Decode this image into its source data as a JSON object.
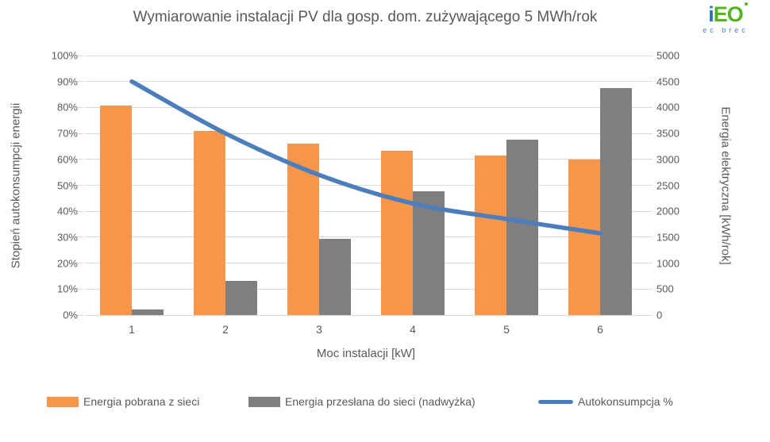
{
  "title": "Wymiarowanie instalacji PV dla gosp. dom. zużywającego 5 MWh/rok",
  "logo": {
    "text_i": "i",
    "text_eo": "EO",
    "subtext": "ec brec",
    "color_i": "#2b71b8",
    "color_eo": "#54b41f",
    "color_sub": "#3b82c4"
  },
  "colors": {
    "text": "#595959",
    "gridline": "#d9d9d9",
    "bar_orange": "#f5964a",
    "bar_gray": "#7f7f7f",
    "line_blue": "#4c7ebc"
  },
  "chart_data": {
    "type": "bar",
    "subtype": "clustered bars + smooth line combo, dual axis",
    "categories": [
      "1",
      "2",
      "3",
      "4",
      "5",
      "6"
    ],
    "series": [
      {
        "name": "Energia pobrana z sieci",
        "type": "bar",
        "axis": "right",
        "color": "#f5964a",
        "values": [
          4030,
          3540,
          3300,
          3160,
          3070,
          3000
        ]
      },
      {
        "name": "Energia przesłana do sieci (nadwyżka)",
        "type": "bar",
        "axis": "right",
        "color": "#7f7f7f",
        "values": [
          100,
          660,
          1470,
          2390,
          3375,
          4370
        ]
      },
      {
        "name": "Autokonsumpcja %",
        "type": "line",
        "axis": "left",
        "color": "#4c7ebc",
        "values": [
          90,
          70,
          54,
          43,
          37,
          31.5
        ]
      }
    ],
    "left_axis": {
      "title": "Stopień autokonsumpcji energii",
      "min": 0,
      "max": 100,
      "ticks": [
        "0%",
        "10%",
        "20%",
        "30%",
        "40%",
        "50%",
        "60%",
        "70%",
        "80%",
        "90%",
        "100%"
      ]
    },
    "right_axis": {
      "title": "Energia elektryczna [kWh/rok]",
      "min": 0,
      "max": 5000,
      "ticks": [
        "0",
        "500",
        "1000",
        "1500",
        "2000",
        "2500",
        "3000",
        "3500",
        "4000",
        "4500",
        "5000"
      ]
    },
    "x_axis": {
      "title": "Moc instalacji [kW]"
    },
    "grid": "horizontal only",
    "legend_position": "bottom"
  },
  "legend": {
    "items": [
      {
        "label": "Energia pobrana z sieci",
        "swatch": "orange-rect"
      },
      {
        "label": "Energia przesłana do sieci (nadwyżka)",
        "swatch": "gray-rect"
      },
      {
        "label": "Autokonsumpcja %",
        "swatch": "blue-line"
      }
    ]
  }
}
